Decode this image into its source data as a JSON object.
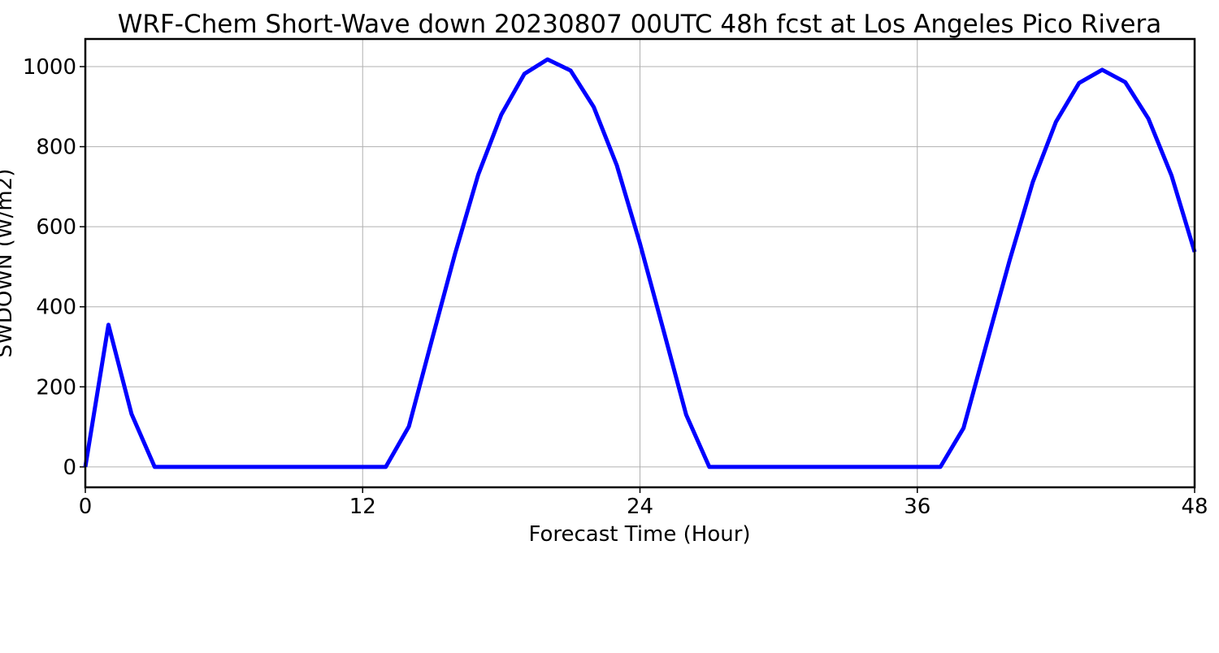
{
  "chart_data": {
    "type": "line",
    "title": "WRF-Chem Short-Wave down  20230807 00UTC 48h fcst at Los Angeles Pico Rivera",
    "xlabel": "Forecast Time (Hour)",
    "ylabel": "SWDOWN  (W/m2)",
    "xlim": [
      0,
      48
    ],
    "ylim": [
      -51,
      1069
    ],
    "xticks": [
      0,
      12,
      24,
      36,
      48
    ],
    "yticks": [
      0,
      200,
      400,
      600,
      800,
      1000
    ],
    "grid": true,
    "series": [
      {
        "name": "SWDOWN",
        "color": "#0000ff",
        "x": [
          0,
          1,
          2,
          3,
          4,
          5,
          6,
          7,
          8,
          9,
          10,
          11,
          12,
          13,
          14,
          15,
          16,
          17,
          18,
          19,
          20,
          21,
          22,
          23,
          24,
          25,
          26,
          27,
          28,
          29,
          30,
          31,
          32,
          33,
          34,
          35,
          36,
          37,
          38,
          39,
          40,
          41,
          42,
          43,
          44,
          45,
          46,
          47,
          48
        ],
        "values": [
          0,
          355,
          132,
          0,
          0,
          0,
          0,
          0,
          0,
          0,
          0,
          0,
          0,
          0,
          101,
          318,
          533,
          730,
          880,
          982,
          1018,
          990,
          899,
          753,
          558,
          345,
          130,
          0,
          0,
          0,
          0,
          0,
          0,
          0,
          0,
          0,
          0,
          0,
          97,
          308,
          517,
          712,
          862,
          959,
          992,
          961,
          870,
          728,
          537
        ]
      }
    ]
  }
}
